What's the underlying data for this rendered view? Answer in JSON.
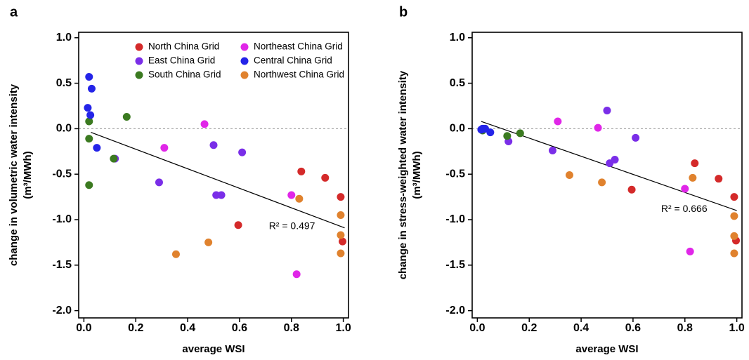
{
  "chart_data": [
    {
      "type": "scatter",
      "panel_label": "a",
      "xlabel": "average WSI",
      "ylabel": [
        "change in volumetric water intensity",
        "(m³/MWh)"
      ],
      "xlim": [
        -0.02,
        1.02
      ],
      "ylim": [
        -2.08,
        1.06
      ],
      "xticks": [
        {
          "value": 0,
          "label": "0.0"
        },
        {
          "value": 0.2,
          "label": "0.2"
        },
        {
          "value": 0.4,
          "label": "0.4"
        },
        {
          "value": 0.6,
          "label": "0.6"
        },
        {
          "value": 0.8,
          "label": "0.8"
        },
        {
          "value": 1,
          "label": "1.0"
        }
      ],
      "yticks": [
        {
          "value": 1,
          "label": "1.0"
        },
        {
          "value": 0.5,
          "label": "0.5"
        },
        {
          "value": 0,
          "label": "0.0"
        },
        {
          "value": -0.5,
          "label": "-0.5"
        },
        {
          "value": -1,
          "label": "-1.0"
        },
        {
          "value": -1.5,
          "label": "-1.5"
        },
        {
          "value": -2,
          "label": "-2.0"
        }
      ],
      "zero_line": true,
      "legend": true,
      "series": [
        {
          "name": "North China Grid",
          "color": "#d42a2a",
          "x": [
            0.838,
            0.93,
            0.99,
            0.997,
            0.595
          ],
          "values": [
            -0.47,
            -0.54,
            -0.75,
            -1.24,
            -1.06
          ]
        },
        {
          "name": "East China Grid",
          "color": "#7a2ee8",
          "x": [
            0.29,
            0.12,
            0.5,
            0.61,
            0.51,
            0.53
          ],
          "values": [
            -0.59,
            -0.33,
            -0.18,
            -0.26,
            -0.73,
            -0.73
          ]
        },
        {
          "name": "South China Grid",
          "color": "#3b7a20",
          "x": [
            0.02,
            0.165,
            0.02,
            0.115,
            0.02
          ],
          "values": [
            0.08,
            0.13,
            -0.11,
            -0.33,
            -0.62
          ]
        },
        {
          "name": "Northeast China Grid",
          "color": "#e026e8",
          "x": [
            0.465,
            0.31,
            0.8,
            0.82
          ],
          "values": [
            0.05,
            -0.21,
            -0.73,
            -1.6
          ]
        },
        {
          "name": "Central China Grid",
          "color": "#2424e8",
          "x": [
            0.02,
            0.03,
            0.015,
            0.025,
            0.05
          ],
          "values": [
            0.57,
            0.44,
            0.23,
            0.15,
            -0.21
          ]
        },
        {
          "name": "Northwest China Grid",
          "color": "#e0822e",
          "x": [
            0.355,
            0.48,
            0.83,
            0.99,
            0.99,
            0.99
          ],
          "values": [
            -1.38,
            -1.25,
            -0.77,
            -0.95,
            -1.17,
            -1.37
          ]
        }
      ],
      "trendline": {
        "x": [
          0.027,
          1.005
        ],
        "y": [
          -0.04,
          -1.09
        ]
      },
      "annotation": "R² = 0.497"
    },
    {
      "type": "scatter",
      "panel_label": "b",
      "xlabel": "average WSI",
      "ylabel": [
        "change in stress-weighted water intensity",
        "(m³/MWh)"
      ],
      "xlim": [
        -0.02,
        1.02
      ],
      "ylim": [
        -2.08,
        1.06
      ],
      "xticks": [
        {
          "value": 0,
          "label": "0.0"
        },
        {
          "value": 0.2,
          "label": "0.2"
        },
        {
          "value": 0.4,
          "label": "0.4"
        },
        {
          "value": 0.6,
          "label": "0.6"
        },
        {
          "value": 0.8,
          "label": "0.8"
        },
        {
          "value": 1,
          "label": "1.0"
        }
      ],
      "yticks": [
        {
          "value": 1,
          "label": "1.0"
        },
        {
          "value": 0.5,
          "label": "0.5"
        },
        {
          "value": 0,
          "label": "0.0"
        },
        {
          "value": -0.5,
          "label": "-0.5"
        },
        {
          "value": -1,
          "label": "-1.0"
        },
        {
          "value": -1.5,
          "label": "-1.5"
        },
        {
          "value": -2,
          "label": "-2.0"
        }
      ],
      "zero_line": true,
      "legend": false,
      "series": [
        {
          "color": "#d42a2a",
          "x": [
            0.838,
            0.93,
            0.99,
            0.997,
            0.595
          ],
          "values": [
            -0.38,
            -0.55,
            -0.75,
            -1.23,
            -0.67
          ]
        },
        {
          "color": "#7a2ee8",
          "x": [
            0.29,
            0.12,
            0.5,
            0.61,
            0.51,
            0.53
          ],
          "values": [
            -0.24,
            -0.14,
            0.2,
            -0.1,
            -0.38,
            -0.34
          ]
        },
        {
          "color": "#3b7a20",
          "x": [
            0.02,
            0.165,
            0.02,
            0.115,
            0.02
          ],
          "values": [
            -0.01,
            -0.05,
            -0.02,
            -0.08,
            -0.01
          ]
        },
        {
          "color": "#e026e8",
          "x": [
            0.465,
            0.31,
            0.8,
            0.82
          ],
          "values": [
            0.01,
            0.08,
            -0.66,
            -1.35
          ]
        },
        {
          "color": "#2424e8",
          "x": [
            0.02,
            0.03,
            0.015,
            0.025,
            0.05
          ],
          "values": [
            0,
            0,
            -0.01,
            0,
            -0.04
          ]
        },
        {
          "color": "#e0822e",
          "x": [
            0.355,
            0.48,
            0.83,
            0.99,
            0.99,
            0.99
          ],
          "values": [
            -0.51,
            -0.59,
            -0.54,
            -0.96,
            -1.18,
            -1.37
          ]
        }
      ],
      "trendline": {
        "x": [
          0.015,
          1.0
        ],
        "y": [
          0.08,
          -0.9
        ]
      },
      "annotation": "R² = 0.666"
    }
  ]
}
